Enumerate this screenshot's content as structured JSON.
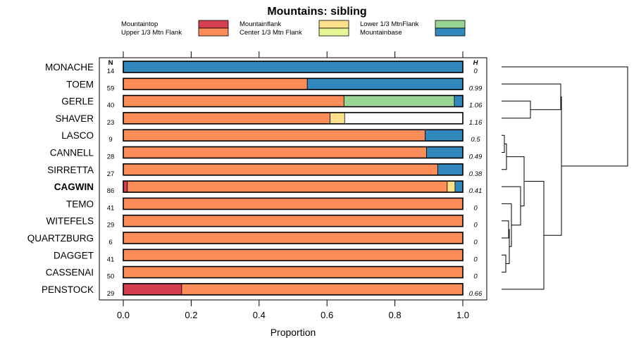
{
  "chart_data": {
    "type": "bar",
    "orientation": "horizontal",
    "stacked": true,
    "title": "Mountains: sibling",
    "xlabel": "Proportion",
    "xlim": [
      0,
      1
    ],
    "xticks": [
      "0.0",
      "0.2",
      "0.4",
      "0.6",
      "0.8",
      "1.0"
    ],
    "xtick_values": [
      0,
      0.2,
      0.4,
      0.6,
      0.8,
      1.0
    ],
    "n_header": "N",
    "h_header": "H",
    "legend": [
      {
        "label": "Mountaintop",
        "color": "#d53e4f"
      },
      {
        "label": "Upper 1/3 Mtn Flank",
        "color": "#fc8d59"
      },
      {
        "label": "Mountainflank",
        "color": "#fee08b"
      },
      {
        "label": "Center 1/3 Mtn Flank",
        "color": "#e6f598"
      },
      {
        "label": "Lower 1/3 MtnFlank",
        "color": "#99d594"
      },
      {
        "label": "Mountainbase",
        "color": "#3288bd"
      }
    ],
    "rows": [
      {
        "label": "MONACHE",
        "bold": false,
        "n": "14",
        "h": "0",
        "segments": [
          {
            "cat": 5,
            "value": 1.0
          }
        ]
      },
      {
        "label": "TOEM",
        "bold": false,
        "n": "59",
        "h": "0.99",
        "segments": [
          {
            "cat": 1,
            "value": 0.542
          },
          {
            "cat": 5,
            "value": 0.458
          }
        ]
      },
      {
        "label": "GERLE",
        "bold": false,
        "n": "40",
        "h": "1.06",
        "segments": [
          {
            "cat": 1,
            "value": 0.65
          },
          {
            "cat": 4,
            "value": 0.325
          },
          {
            "cat": 5,
            "value": 0.025
          }
        ]
      },
      {
        "label": "SHAVER",
        "bold": false,
        "n": "23",
        "h": "1.16",
        "segments": [
          {
            "cat": 1,
            "value": 0.609
          },
          {
            "cat": 2,
            "value": 0.043
          }
        ]
      },
      {
        "label": "LASCO",
        "bold": false,
        "n": "9",
        "h": "0.5",
        "segments": [
          {
            "cat": 1,
            "value": 0.889
          },
          {
            "cat": 5,
            "value": 0.111
          }
        ]
      },
      {
        "label": "CANNELL",
        "bold": false,
        "n": "28",
        "h": "0.49",
        "segments": [
          {
            "cat": 1,
            "value": 0.893
          },
          {
            "cat": 5,
            "value": 0.107
          }
        ]
      },
      {
        "label": "SIRRETTA",
        "bold": false,
        "n": "27",
        "h": "0.38",
        "segments": [
          {
            "cat": 1,
            "value": 0.926
          },
          {
            "cat": 5,
            "value": 0.074
          }
        ]
      },
      {
        "label": "CAGWIN",
        "bold": true,
        "n": "86",
        "h": "0.41",
        "segments": [
          {
            "cat": 0,
            "value": 0.012
          },
          {
            "cat": 1,
            "value": 0.942
          },
          {
            "cat": 2,
            "value": 0.023
          },
          {
            "cat": 5,
            "value": 0.023
          }
        ]
      },
      {
        "label": "TEMO",
        "bold": false,
        "n": "41",
        "h": "0",
        "segments": [
          {
            "cat": 1,
            "value": 1.0
          }
        ]
      },
      {
        "label": "WITEFELS",
        "bold": false,
        "n": "29",
        "h": "0",
        "segments": [
          {
            "cat": 1,
            "value": 1.0
          }
        ]
      },
      {
        "label": "QUARTZBURG",
        "bold": false,
        "n": "6",
        "h": "0",
        "segments": [
          {
            "cat": 1,
            "value": 1.0
          }
        ]
      },
      {
        "label": "DAGGET",
        "bold": false,
        "n": "41",
        "h": "0",
        "segments": [
          {
            "cat": 1,
            "value": 1.0
          }
        ]
      },
      {
        "label": "CASSENAI",
        "bold": false,
        "n": "50",
        "h": "0",
        "segments": [
          {
            "cat": 1,
            "value": 1.0
          }
        ]
      },
      {
        "label": "PENSTOCK",
        "bold": false,
        "n": "29",
        "h": "0.66",
        "segments": [
          {
            "cat": 0,
            "value": 0.172
          },
          {
            "cat": 1,
            "value": 0.828
          }
        ]
      }
    ]
  }
}
